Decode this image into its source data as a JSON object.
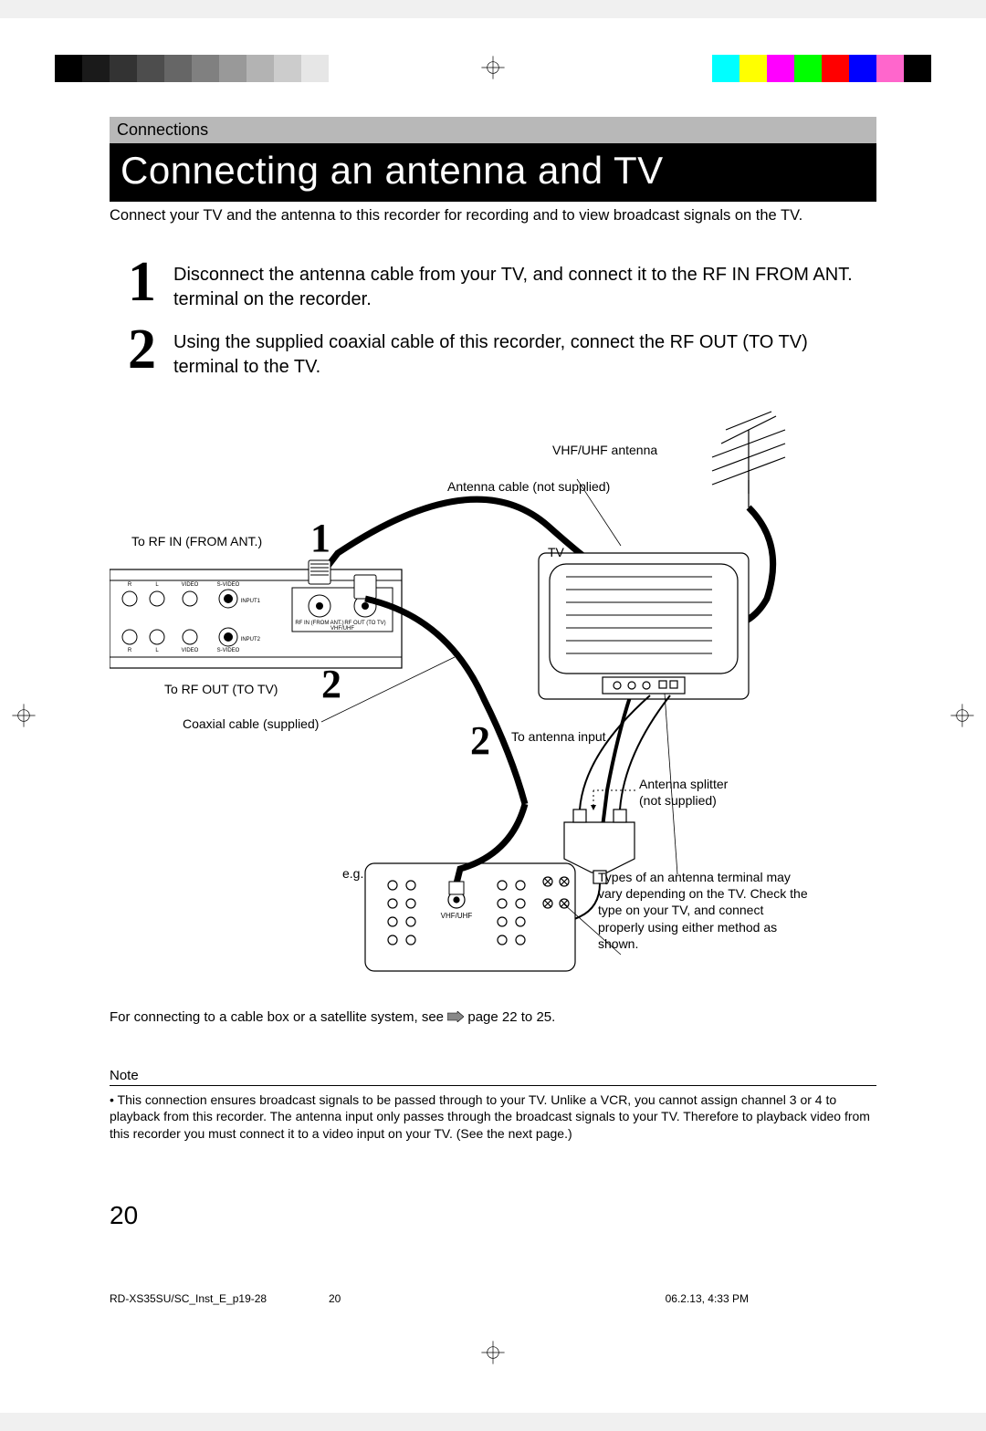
{
  "header_section_label": "Connections",
  "title": "Connecting an antenna and TV",
  "intro_text": "Connect your TV and the antenna to this recorder for recording and to view broadcast signals on the TV.",
  "steps": [
    {
      "num": "1",
      "text": "Disconnect the antenna cable from your TV, and connect it to the RF IN FROM ANT. terminal on the recorder."
    },
    {
      "num": "2",
      "text": "Using the supplied coaxial cable of this recorder, connect the RF OUT (TO TV) terminal to the TV."
    }
  ],
  "diagram": {
    "labels": {
      "vhf_uhf_antenna": "VHF/UHF antenna",
      "antenna_cable_not_supplied": "Antenna cable (not supplied)",
      "to_rf_in": "To RF IN (FROM ANT.)",
      "tv": "TV",
      "to_rf_out": "To RF OUT (TO TV)",
      "coaxial_supplied": "Coaxial cable (supplied)",
      "to_antenna_input": "To antenna input",
      "antenna_splitter": "Antenna splitter (not supplied)",
      "eg": "e.g.",
      "types_note": "Types of an antenna terminal may vary depending on the TV. Check the type on your TV, and connect properly using either method as shown.",
      "vhf_uhf_small": "VHF/UHF",
      "rf_in_small": "RF IN (FROM ANT.)",
      "rf_out_small": "RF OUT (TO TV)",
      "input1": "INPUT1",
      "input2": "INPUT2",
      "r": "R",
      "l": "L",
      "video": "VIDEO",
      "svideo": "S-VIDEO"
    },
    "callout_nums": {
      "one": "1",
      "two_a": "2",
      "two_b": "2"
    }
  },
  "bottom_note": {
    "prefix": "For connecting to a cable box or a satellite system, see ",
    "page_ref": "page 22 to 25."
  },
  "note": {
    "heading": "Note",
    "bullet": "• ",
    "body": "This connection ensures broadcast signals to be passed through to your TV. Unlike a VCR, you cannot assign channel 3 or 4 to playback from this recorder. The antenna input only passes through the broadcast signals to your TV. Therefore to playback video from this recorder you must connect it to a video input on your TV. (See the next page.)"
  },
  "page_number": "20",
  "footer": {
    "filename": "RD-XS35SU/SC_Inst_E_p19-28",
    "pagenum": "20",
    "timestamp": "06.2.13, 4:33 PM"
  },
  "reg_colors": {
    "grayscale": [
      "#000000",
      "#1a1a1a",
      "#333333",
      "#4d4d4d",
      "#666666",
      "#808080",
      "#999999",
      "#b3b3b3",
      "#cccccc",
      "#e6e6e6",
      "#ffffff"
    ],
    "bar": [
      "#00ffff",
      "#ffff00",
      "#ff00ff",
      "#00ff00",
      "#ff0000",
      "#0000ff",
      "#ff66cc",
      "#000000"
    ]
  }
}
